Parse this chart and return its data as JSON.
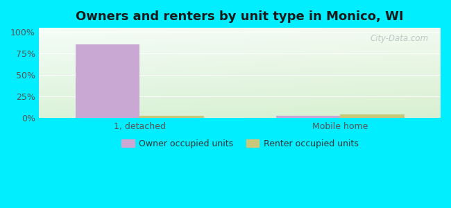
{
  "title": "Owners and renters by unit type in Monico, WI",
  "categories": [
    "1, detached",
    "Mobile home"
  ],
  "owner_values": [
    86,
    3
  ],
  "renter_values": [
    3,
    4
  ],
  "owner_color": "#c9a8d4",
  "renter_color": "#c8c87a",
  "outer_bg": "#00eeff",
  "yticks": [
    0,
    25,
    50,
    75,
    100
  ],
  "ylabels": [
    "0%",
    "25%",
    "50%",
    "75%",
    "100%"
  ],
  "ylim": [
    0,
    105
  ],
  "bar_width": 0.32,
  "watermark": "City-Data.com",
  "legend_owner": "Owner occupied units",
  "legend_renter": "Renter occupied units",
  "title_fontsize": 13,
  "tick_fontsize": 9,
  "legend_fontsize": 9
}
